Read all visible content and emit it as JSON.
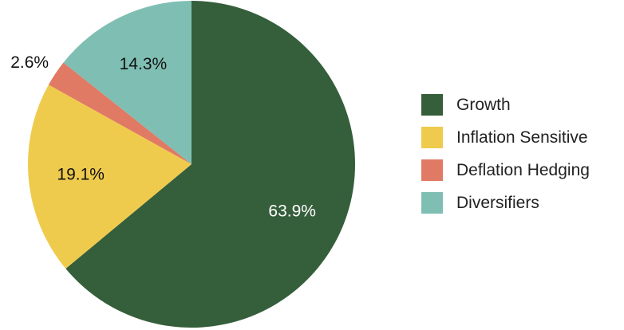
{
  "chart_data": {
    "type": "pie",
    "title": "",
    "slices": [
      {
        "name": "Growth",
        "value": 63.9,
        "label": "63.9%",
        "color": "#355e3b",
        "label_color": "#ffffff"
      },
      {
        "name": "Inflation Sensitive",
        "value": 19.1,
        "label": "19.1%",
        "color": "#efcb4d",
        "label_color": "#111111"
      },
      {
        "name": "Deflation Hedging",
        "value": 2.6,
        "label": "2.6%",
        "color": "#e07a65",
        "label_color": "#111111"
      },
      {
        "name": "Diversifiers",
        "value": 14.3,
        "label": "14.3%",
        "color": "#7fbfb3",
        "label_color": "#111111"
      }
    ],
    "start_angle": "12 o'clock",
    "direction": "clockwise",
    "legend_position": "right"
  },
  "legend": {
    "items": [
      {
        "label": "Growth",
        "color": "#355e3b"
      },
      {
        "label": "Inflation Sensitive",
        "color": "#efcb4d"
      },
      {
        "label": "Deflation Hedging",
        "color": "#e07a65"
      },
      {
        "label": "Diversifiers",
        "color": "#7fbfb3"
      }
    ]
  }
}
